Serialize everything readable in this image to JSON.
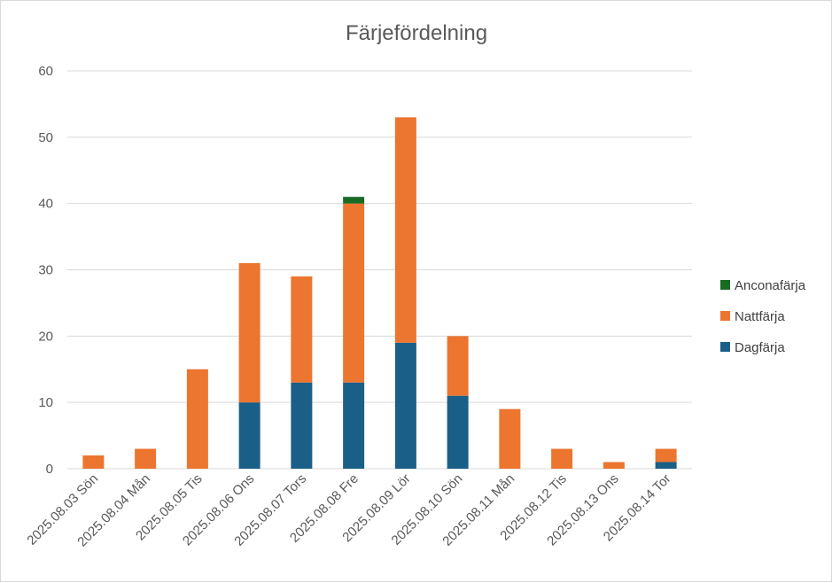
{
  "chart_data": {
    "type": "bar",
    "stacked": true,
    "title": "Färjefördelning",
    "xlabel": "",
    "ylabel": "",
    "ylim": [
      0,
      60
    ],
    "yticks": [
      0,
      10,
      20,
      30,
      40,
      50,
      60
    ],
    "grid": true,
    "legend_position": "right",
    "categories": [
      "2025.08.03 Sön",
      "2025.08.04 Mån",
      "2025.08.05 Tis",
      "2025.08.06 Ons",
      "2025.08.07 Tors",
      "2025.08.08 Fre",
      "2025.08.09 Lör",
      "2025.08.10 Sön",
      "2025.08.11 Mån",
      "2025.08.12 Tis",
      "2025.08.13 Ons",
      "2025.08.14 Tor"
    ],
    "series": [
      {
        "name": "Dagfärja",
        "color": "#1a5f87",
        "values": [
          0,
          0,
          0,
          10,
          13,
          13,
          19,
          11,
          0,
          0,
          0,
          1
        ]
      },
      {
        "name": "Nattfärja",
        "color": "#ec7530",
        "values": [
          2,
          3,
          15,
          21,
          16,
          27,
          34,
          9,
          9,
          3,
          1,
          2
        ]
      },
      {
        "name": "Anconafärja",
        "color": "#196b24",
        "values": [
          0,
          0,
          0,
          0,
          0,
          1,
          0,
          0,
          0,
          0,
          0,
          0
        ]
      }
    ],
    "legend_order": [
      "Anconafärja",
      "Nattfärja",
      "Dagfärja"
    ]
  }
}
